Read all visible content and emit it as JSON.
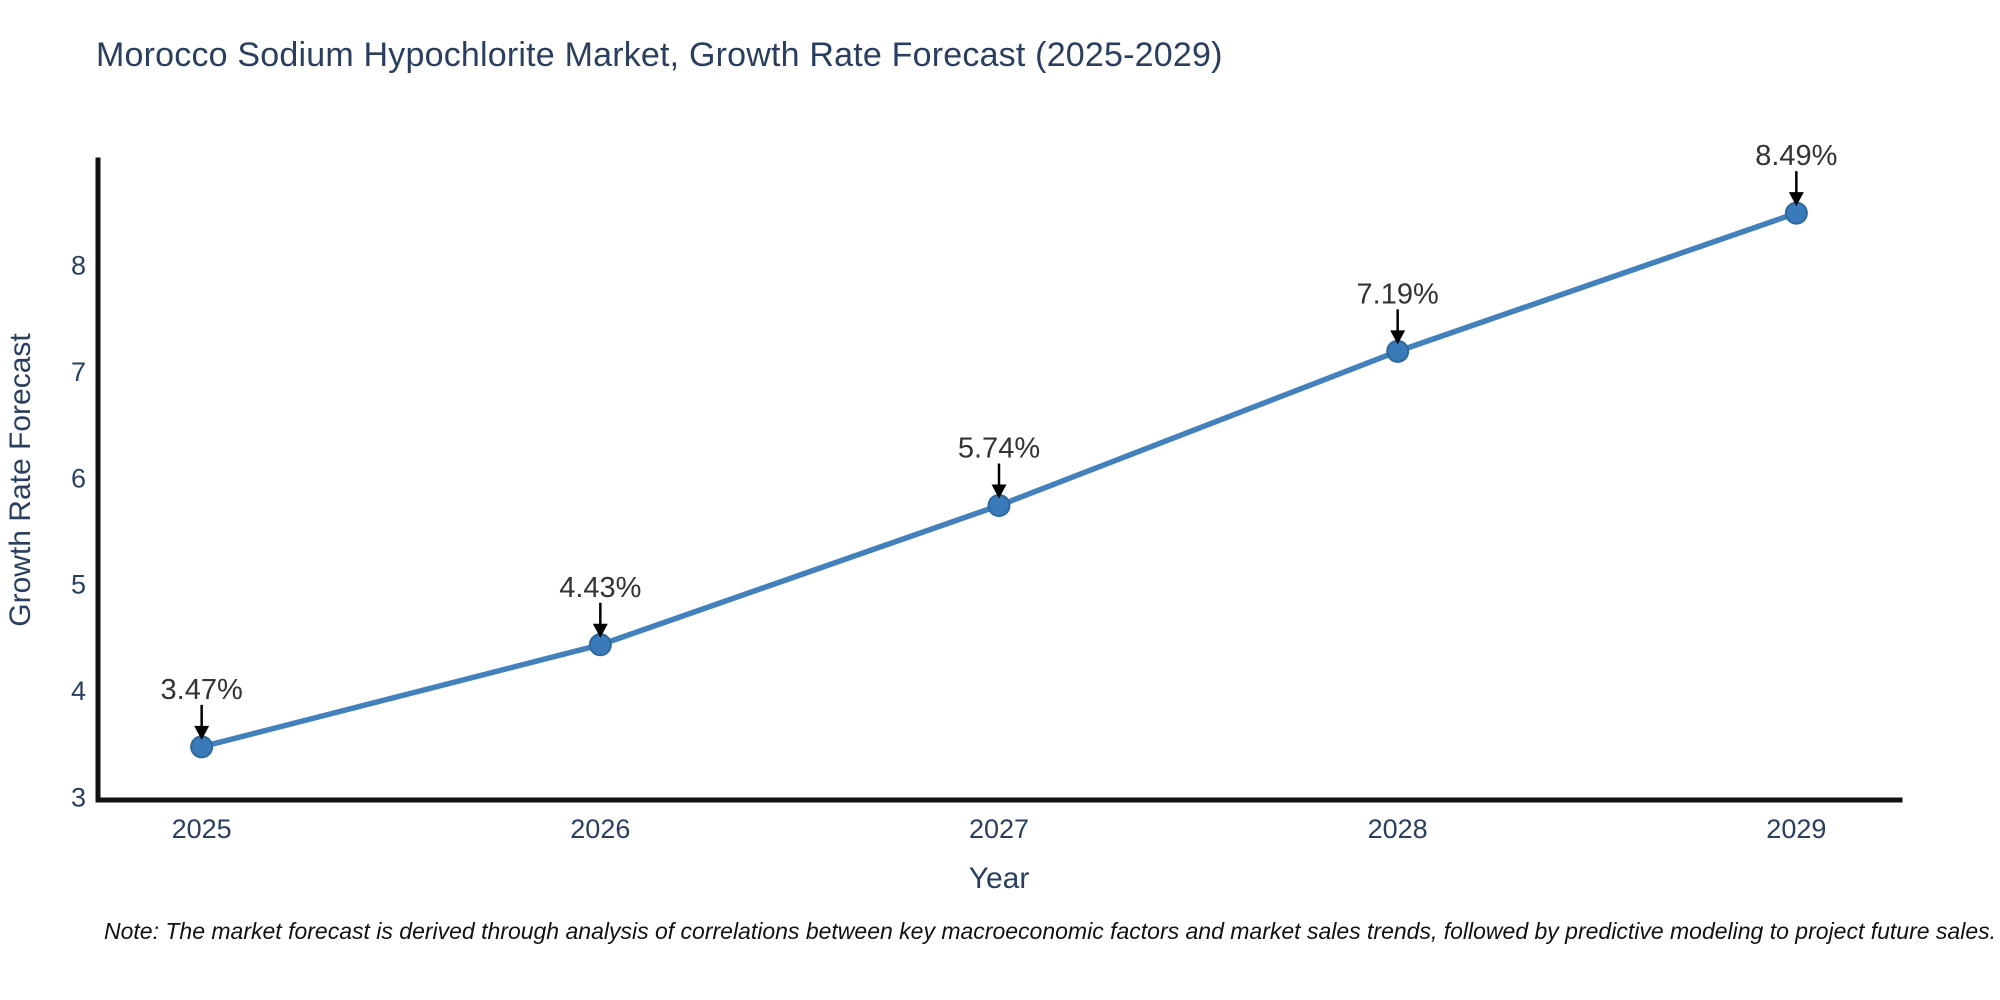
{
  "chart_data": {
    "type": "line",
    "title": "Morocco Sodium Hypochlorite Market, Growth Rate Forecast (2025-2029)",
    "xlabel": "Year",
    "ylabel": "Growth Rate Forecast",
    "x": [
      2025,
      2026,
      2027,
      2028,
      2029
    ],
    "values": [
      3.47,
      4.43,
      5.74,
      7.19,
      8.49
    ],
    "point_labels": [
      "3.47%",
      "4.43%",
      "5.74%",
      "7.19%",
      "8.49%"
    ],
    "xticks": [
      "2025",
      "2026",
      "2027",
      "2028",
      "2029"
    ],
    "yticks": [
      3,
      4,
      5,
      6,
      7,
      8
    ],
    "xlim": [
      2024.74,
      2029.26
    ],
    "ylim": [
      2.97,
      8.99
    ],
    "grid": false,
    "legend_position": "none",
    "line_color": "#4381bd",
    "marker_color": "#3a7ab8",
    "marker_stroke_color": "#2e689f",
    "axis_color": "#111111",
    "label_color": "#2a3f5f",
    "annotation_color": "#333333",
    "arrow_color": "#000000"
  },
  "note": {
    "text": "Note: The market forecast is derived through analysis of correlations between key macroeconomic factors and market sales trends, followed by predictive modeling to project future sales."
  }
}
